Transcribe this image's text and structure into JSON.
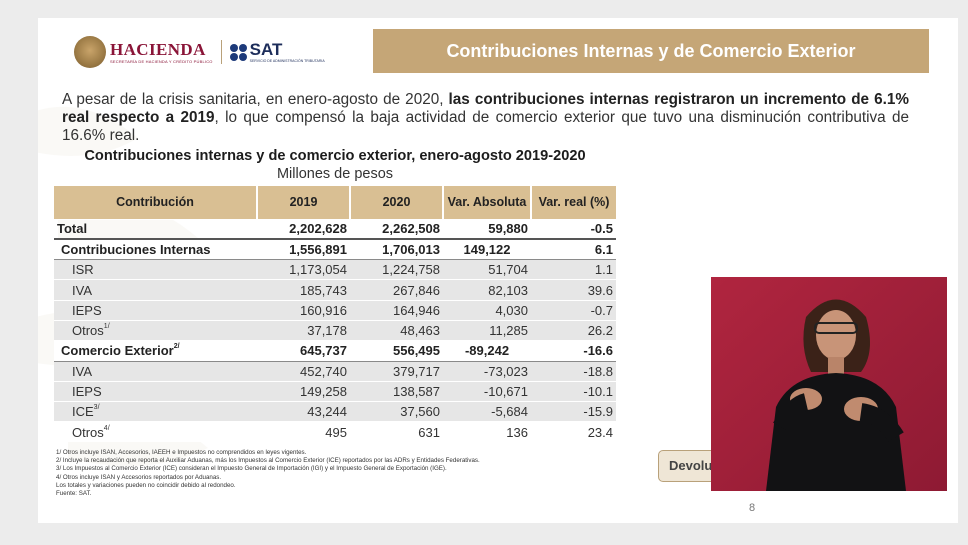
{
  "header": {
    "logo_hacienda": "HACIENDA",
    "logo_hacienda_sub": "SECRETARÍA DE HACIENDA Y CRÉDITO PÚBLICO",
    "logo_sat": "SAT",
    "logo_sat_sub": "SERVICIO DE ADMINISTRACIÓN TRIBUTARIA",
    "banner_title": "Contribuciones Internas y de Comercio Exterior"
  },
  "intro": {
    "part1": "A pesar de la crisis sanitaria, en enero-agosto de 2020, ",
    "bold": "las contribuciones internas registraron un incremento de 6.1% real respecto a 2019",
    "part2": ", lo que compensó la baja actividad de comercio exterior que tuvo una disminución contributiva de 16.6% real."
  },
  "table": {
    "title": "Contribuciones internas y de comercio exterior, enero-agosto 2019-2020",
    "subtitle": "Millones de pesos",
    "headers": [
      "Contribución",
      "2019",
      "2020",
      "Var. Absoluta",
      "Var. real (%)"
    ],
    "rows": [
      {
        "label": "Total",
        "sup": "",
        "v2019": "2,202,628",
        "v2020": "2,262,508",
        "abs": "59,880",
        "real": "-0.5"
      },
      {
        "label": "Contribuciones Internas",
        "sup": "",
        "v2019": "1,556,891",
        "v2020": "1,706,013",
        "abs": "149,122",
        "real": "6.1"
      },
      {
        "label": "ISR",
        "sup": "",
        "v2019": "1,173,054",
        "v2020": "1,224,758",
        "abs": "51,704",
        "real": "1.1"
      },
      {
        "label": "IVA",
        "sup": "",
        "v2019": "185,743",
        "v2020": "267,846",
        "abs": "82,103",
        "real": "39.6"
      },
      {
        "label": "IEPS",
        "sup": "",
        "v2019": "160,916",
        "v2020": "164,946",
        "abs": "4,030",
        "real": "-0.7"
      },
      {
        "label": "Otros",
        "sup": "1/",
        "v2019": "37,178",
        "v2020": "48,463",
        "abs": "11,285",
        "real": "26.2"
      },
      {
        "label": "Comercio Exterior",
        "sup": "2/",
        "v2019": "645,737",
        "v2020": "556,495",
        "abs": "-89,242",
        "real": "-16.6"
      },
      {
        "label": "IVA",
        "sup": "",
        "v2019": "452,740",
        "v2020": "379,717",
        "abs": "-73,023",
        "real": "-18.8"
      },
      {
        "label": "IEPS",
        "sup": "",
        "v2019": "149,258",
        "v2020": "138,587",
        "abs": "-10,671",
        "real": "-10.1"
      },
      {
        "label": "ICE",
        "sup": "3/",
        "v2019": "43,244",
        "v2020": "37,560",
        "abs": "-5,684",
        "real": "-15.9"
      },
      {
        "label": "Otros",
        "sup": "4/",
        "v2019": "495",
        "v2020": "631",
        "abs": "136",
        "real": "23.4"
      }
    ]
  },
  "notes": [
    "1/ Otros incluye ISAN, Accesorios, IAEEH e Impuestos no comprendidos en leyes vigentes.",
    "2/ Incluye la recaudación que reporta el Auxiliar Aduanas, más los Impuestos al Comercio Exterior (ICE) reportados por las ADRs y Entidades Federativas.",
    "3/ Los Impuestos al Comercio Exterior (ICE) consideran el Impuesto General de Importación (IGI) y el Impuesto General de Exportación (IGE).",
    "4/ Otros incluye ISAN y Accesorios reportados por Aduanas.",
    "Los totales y variaciones pueden no coincidir debido al redondeo.",
    "Fuente: SAT."
  ],
  "devol_button": "Devolu",
  "page_number": "8",
  "colors": {
    "banner": "#c5a677",
    "table_header": "#d9bf93",
    "brand_red": "#8a1538",
    "signer_background": "#a8203a"
  }
}
